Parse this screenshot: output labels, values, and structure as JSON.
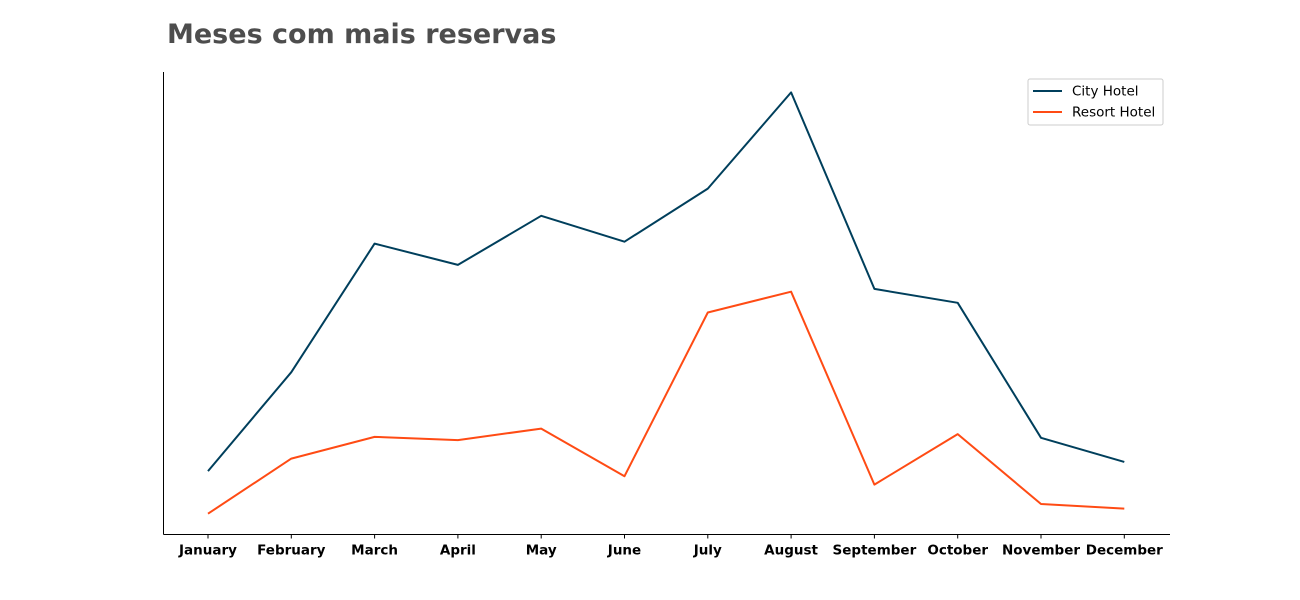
{
  "chart_data": {
    "type": "line",
    "title": "Meses com mais reservas",
    "xlabel": "",
    "ylabel": "",
    "categories": [
      "January",
      "February",
      "March",
      "April",
      "May",
      "June",
      "July",
      "August",
      "September",
      "October",
      "November",
      "December"
    ],
    "ylim": [
      0,
      1
    ],
    "y_axis_visible": false,
    "grid": false,
    "legend_position": "top-right",
    "series": [
      {
        "name": "City Hotel",
        "color": "#003f5c",
        "values": [
          0.137,
          0.351,
          0.629,
          0.583,
          0.689,
          0.633,
          0.748,
          0.956,
          0.531,
          0.501,
          0.209,
          0.157
        ]
      },
      {
        "name": "Resort Hotel",
        "color": "#ff4b14",
        "values": [
          0.045,
          0.164,
          0.211,
          0.204,
          0.229,
          0.126,
          0.48,
          0.525,
          0.108,
          0.217,
          0.066,
          0.056
        ]
      }
    ]
  },
  "colors": {
    "title": "#4d4d4d",
    "axis": "#000000",
    "tick_text": "#000000",
    "legend_border": "#cccccc"
  }
}
